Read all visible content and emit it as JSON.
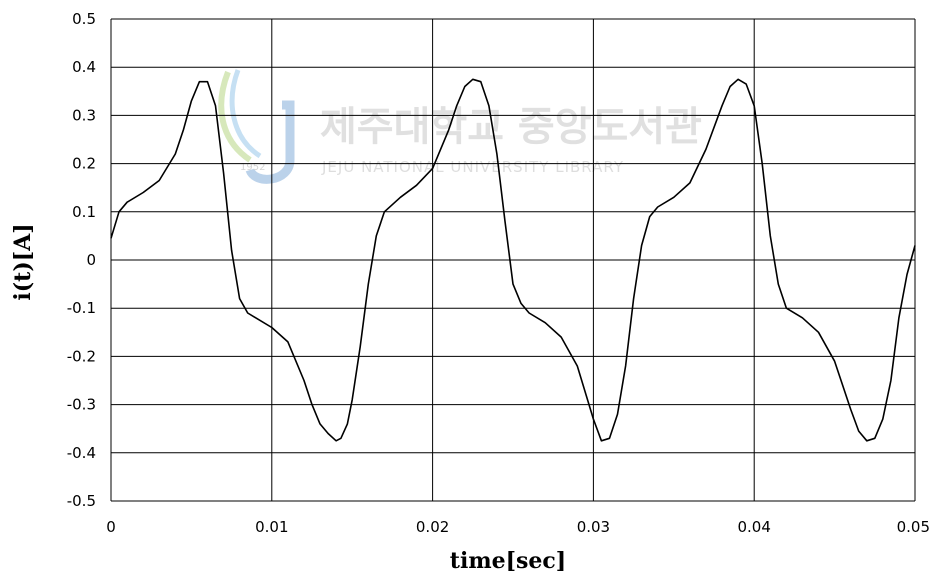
{
  "chart_data": {
    "type": "line",
    "title": "",
    "xlabel": "time[sec]",
    "ylabel": "i(t)[A]",
    "xlim": [
      0,
      0.05
    ],
    "ylim": [
      -0.5,
      0.5
    ],
    "x_ticks": [
      "0",
      "0.01",
      "0.02",
      "0.03",
      "0.04",
      "0.05"
    ],
    "y_ticks": [
      "0.5",
      "0.4",
      "0.3",
      "0.2",
      "0.1",
      "0",
      "-0.1",
      "-0.2",
      "-0.3",
      "-0.4",
      "-0.5"
    ],
    "x_tick_values": [
      0,
      0.01,
      0.02,
      0.03,
      0.04,
      0.05
    ],
    "y_tick_values": [
      0.5,
      0.4,
      0.3,
      0.2,
      0.1,
      0,
      -0.1,
      -0.2,
      -0.3,
      -0.4,
      -0.5
    ],
    "grid": true,
    "series": [
      {
        "color": "#000000",
        "x": [
          0.0,
          0.0005,
          0.001,
          0.002,
          0.003,
          0.004,
          0.0045,
          0.005,
          0.0055,
          0.006,
          0.0065,
          0.007,
          0.0075,
          0.008,
          0.0085,
          0.009,
          0.01,
          0.011,
          0.012,
          0.0125,
          0.013,
          0.0135,
          0.014,
          0.0143,
          0.0147,
          0.015,
          0.0155,
          0.016,
          0.0165,
          0.017,
          0.018,
          0.019,
          0.02,
          0.021,
          0.0215,
          0.022,
          0.0225,
          0.023,
          0.0235,
          0.024,
          0.0245,
          0.025,
          0.0255,
          0.026,
          0.027,
          0.028,
          0.029,
          0.03,
          0.0305,
          0.031,
          0.0315,
          0.032,
          0.0325,
          0.033,
          0.0335,
          0.034,
          0.035,
          0.036,
          0.037,
          0.038,
          0.0385,
          0.039,
          0.0395,
          0.04,
          0.0405,
          0.041,
          0.0415,
          0.042,
          0.043,
          0.044,
          0.045,
          0.046,
          0.0465,
          0.047,
          0.0475,
          0.048,
          0.0485,
          0.049,
          0.0495,
          0.05
        ],
        "values": [
          0.045,
          0.1,
          0.12,
          0.14,
          0.165,
          0.22,
          0.27,
          0.33,
          0.37,
          0.37,
          0.32,
          0.18,
          0.02,
          -0.08,
          -0.11,
          -0.12,
          -0.14,
          -0.17,
          -0.25,
          -0.3,
          -0.34,
          -0.36,
          -0.375,
          -0.37,
          -0.34,
          -0.29,
          -0.18,
          -0.05,
          0.05,
          0.1,
          0.13,
          0.155,
          0.19,
          0.27,
          0.32,
          0.36,
          0.375,
          0.37,
          0.32,
          0.22,
          0.08,
          -0.05,
          -0.09,
          -0.11,
          -0.13,
          -0.16,
          -0.22,
          -0.33,
          -0.375,
          -0.37,
          -0.32,
          -0.22,
          -0.08,
          0.03,
          0.09,
          0.11,
          0.13,
          0.16,
          0.23,
          0.32,
          0.36,
          0.375,
          0.365,
          0.32,
          0.2,
          0.05,
          -0.05,
          -0.1,
          -0.12,
          -0.15,
          -0.21,
          -0.31,
          -0.355,
          -0.375,
          -0.37,
          -0.33,
          -0.25,
          -0.12,
          -0.03,
          0.03
        ]
      }
    ]
  },
  "watermark": {
    "korean": "제주대학교 중앙도서관",
    "english": "JEJU NATIONAL UNIVERSITY  LIBRARY"
  }
}
